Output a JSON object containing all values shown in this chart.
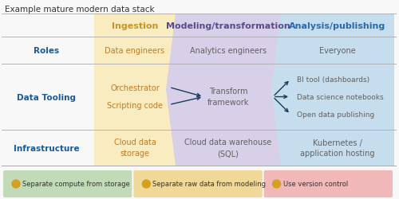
{
  "title": "Example mature modern data stack",
  "title_fontsize": 7.5,
  "col_headers": [
    "Ingestion",
    "Modeling/transformation",
    "Analysis/publishing"
  ],
  "col_header_colors": [
    "#c8952a",
    "#5a4a8a",
    "#2a6aaa"
  ],
  "col_bg_colors": [
    "#f8ecc0",
    "#d8d0e8",
    "#c5dded"
  ],
  "row_labels": [
    "Roles",
    "Data Tooling",
    "Infrastructure"
  ],
  "row_label_color": "#1a5a9a",
  "bg_color": "#f8f8f8",
  "footer_items": [
    {
      "text": "Separate compute from storage",
      "bg": "#c2dab8",
      "icon_color": "#d4a020"
    },
    {
      "text": "Separate raw data from modeling",
      "bg": "#f0d898",
      "icon_color": "#d4a020"
    },
    {
      "text": "Use version control",
      "bg": "#f0b8b8",
      "icon_color": "#d4a020"
    }
  ],
  "arrow_color": "#1a3a5e",
  "orange": "#c47a20",
  "gray": "#606060"
}
